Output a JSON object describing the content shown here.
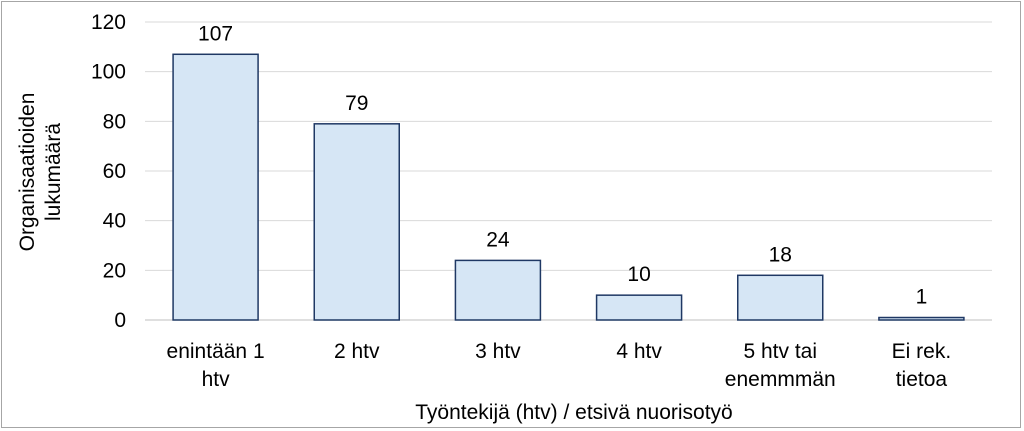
{
  "chart_data": {
    "type": "bar",
    "categories": [
      [
        "enintään 1",
        "htv"
      ],
      [
        "2 htv"
      ],
      [
        "3 htv"
      ],
      [
        "4 htv"
      ],
      [
        "5 htv tai",
        "enemmmän"
      ],
      [
        "Ei rek.",
        "tietoa"
      ]
    ],
    "values": [
      107,
      79,
      24,
      10,
      18,
      1
    ],
    "title": "",
    "xlabel": "Työntekijä (htv) / etsivä nuorisotyö",
    "ylabel": [
      "Organisaatioiden",
      "lukumäärä"
    ],
    "ylim": [
      0,
      120
    ],
    "yticks": [
      0,
      20,
      40,
      60,
      80,
      100,
      120
    ],
    "grid": true,
    "legend": "none",
    "colors": {
      "bar_fill": "#d6e6f5",
      "bar_stroke": "#1f3864",
      "grid": "#d9d9d9",
      "axis": "#bfbfbf"
    }
  }
}
